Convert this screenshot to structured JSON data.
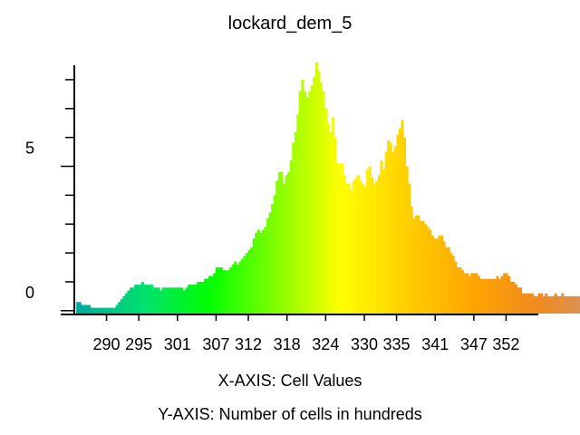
{
  "chart_data": {
    "type": "bar",
    "title": "lockard_dem_5",
    "xlabel": "X-AXIS: Cell Values",
    "ylabel": "Y-AXIS: Number of cells in hundreds",
    "x_ticks": [
      290,
      295,
      301,
      307,
      312,
      318,
      324,
      330,
      335,
      341,
      347,
      352
    ],
    "y_ticks": [
      0,
      5
    ],
    "xlim": [
      285,
      357
    ],
    "ylim": [
      -0.1,
      8.5
    ],
    "grid": false,
    "color_ramp": [
      "#00a99d",
      "#00e070",
      "#00ff00",
      "#80ff00",
      "#ffff00",
      "#ffd000",
      "#ffa500",
      "#f08a20",
      "#d2956a",
      "#c8c0b8"
    ],
    "x_start": 285.3,
    "x_step": 0.36,
    "values": [
      0.3,
      0.3,
      0.2,
      0.2,
      0.2,
      0.2,
      0.1,
      0.1,
      0.1,
      0.1,
      0.1,
      0.1,
      0.1,
      0.1,
      0.1,
      0.1,
      0.1,
      0.2,
      0.3,
      0.4,
      0.5,
      0.6,
      0.7,
      0.8,
      0.8,
      0.9,
      0.9,
      0.9,
      1.0,
      0.9,
      0.9,
      0.9,
      0.9,
      0.8,
      0.8,
      0.8,
      0.7,
      0.8,
      0.8,
      0.8,
      0.8,
      0.8,
      0.8,
      0.8,
      0.8,
      0.8,
      0.7,
      0.8,
      0.9,
      0.9,
      0.9,
      0.9,
      1.0,
      1.0,
      1.0,
      1.1,
      1.1,
      1.2,
      1.2,
      1.3,
      1.5,
      1.5,
      1.5,
      1.4,
      1.4,
      1.4,
      1.5,
      1.6,
      1.7,
      1.6,
      1.7,
      1.8,
      1.9,
      2.0,
      2.1,
      2.2,
      2.5,
      2.7,
      2.8,
      2.7,
      2.8,
      2.9,
      3.2,
      3.4,
      3.7,
      4.0,
      4.5,
      4.8,
      4.8,
      4.4,
      4.7,
      4.8,
      5.2,
      5.8,
      6.2,
      6.8,
      7.6,
      8.0,
      7.6,
      7.4,
      7.6,
      7.8,
      8.1,
      8.6,
      8.3,
      7.9,
      7.6,
      7.0,
      6.5,
      6.2,
      6.7,
      6.0,
      5.1,
      5.1,
      5.1,
      4.7,
      4.4,
      4.4,
      4.2,
      4.5,
      4.6,
      4.7,
      4.5,
      4.4,
      4.3,
      4.9,
      5.0,
      4.6,
      4.4,
      4.5,
      4.7,
      5.2,
      4.9,
      5.5,
      5.9,
      5.8,
      5.5,
      5.7,
      6.1,
      6.3,
      6.6,
      6.0,
      5.0,
      4.4,
      3.6,
      3.2,
      3.3,
      3.3,
      3.1,
      3.1,
      3.0,
      2.9,
      2.8,
      2.6,
      2.5,
      2.5,
      2.6,
      2.6,
      2.4,
      2.2,
      2.2,
      2.0,
      1.9,
      1.7,
      1.5,
      1.5,
      1.4,
      1.3,
      1.3,
      1.2,
      1.3,
      1.3,
      1.3,
      1.2,
      1.1,
      1.1,
      1.1,
      1.1,
      1.1,
      1.1,
      1.1,
      1.2,
      1.1,
      1.2,
      1.3,
      1.3,
      1.2,
      1.0,
      1.0,
      0.9,
      0.8,
      0.8,
      0.6,
      0.6,
      0.6,
      0.6,
      0.6,
      0.5,
      0.5,
      0.6,
      0.6,
      0.5,
      0.6,
      0.5,
      0.5,
      0.5,
      0.6,
      0.5,
      0.5,
      0.6,
      0.5,
      0.5,
      0.5,
      0.5,
      0.5,
      0.5,
      0.5,
      0.5,
      0.5,
      0.5,
      0.5,
      0.5,
      0.4,
      0.5,
      0.5,
      0.5,
      0.5,
      0.5,
      0.5,
      0.5,
      0.6,
      0.6,
      0.6,
      0.6,
      0.6,
      0.5,
      0.5,
      0.5,
      0.5,
      0.5,
      0.5,
      0.4,
      0.4,
      0.4,
      0.4,
      0.4,
      0.5,
      0.4,
      0.4,
      0.4,
      0.3,
      0.3,
      0.3,
      0.3,
      0.4,
      0.4
    ]
  }
}
